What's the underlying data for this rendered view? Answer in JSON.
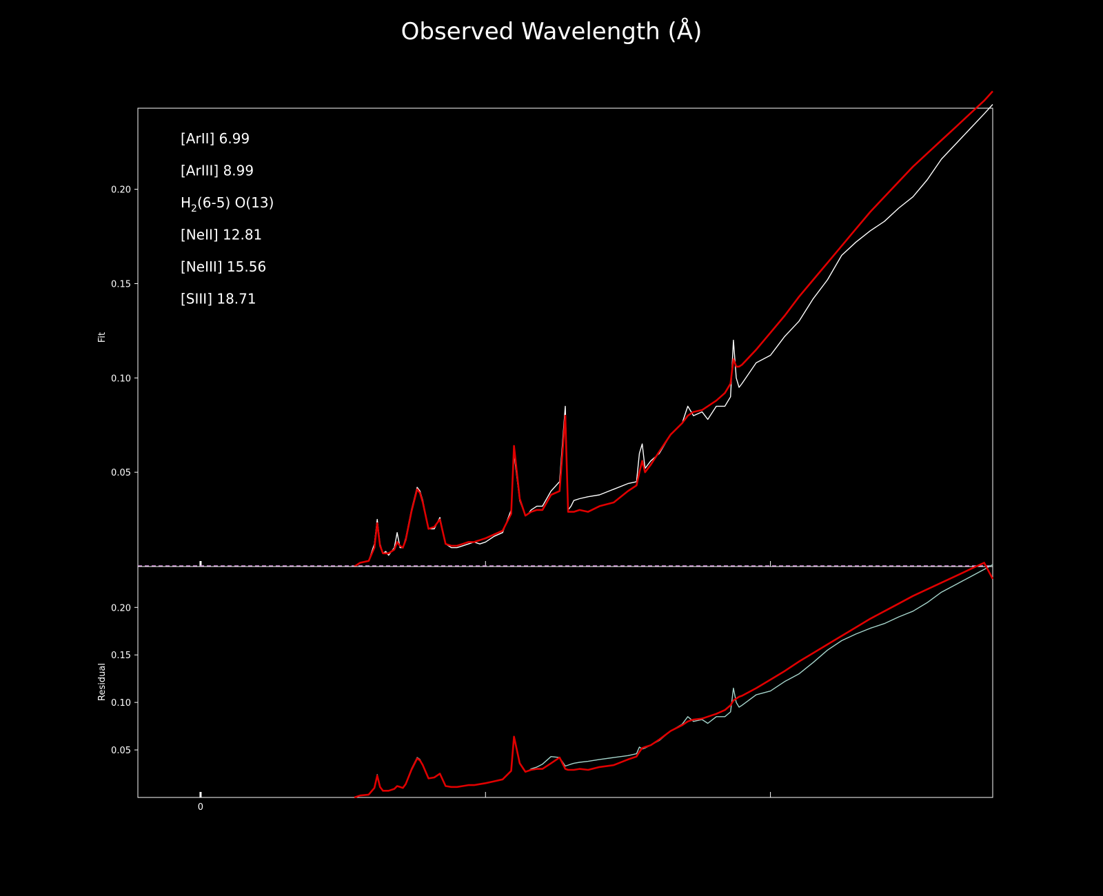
{
  "figure": {
    "title": "Observed Wavelength (Å)"
  },
  "colors": {
    "background": "#000000",
    "axes": "#ffffff",
    "data_top": "#ffffff",
    "data_bottom": "#a6d5cc",
    "model": "#e00000",
    "baseline": "#d08ad8"
  },
  "chart_data": [
    {
      "type": "line",
      "panel": "top",
      "ylabel": "Fit",
      "yticks": [
        0.05,
        0.1,
        0.15,
        0.2
      ],
      "yticklabels": [
        "0.05",
        "0.10",
        "0.15",
        "0.20"
      ],
      "ylim": [
        0.0,
        0.243
      ],
      "xlim": [
        -2.2,
        27.8
      ],
      "xticks": [
        0,
        10,
        20
      ],
      "xticklabels": [
        "",
        "",
        ""
      ],
      "line_labels": [
        {
          "ion": "[ArII]",
          "wavelength": "6.99"
        },
        {
          "ion": "[ArIII]",
          "wavelength": "8.99"
        },
        {
          "ion": "H",
          "sub": "2",
          "suffix": "(6-5) O(13)"
        },
        {
          "ion": "[NeII]",
          "wavelength": "12.81"
        },
        {
          "ion": "[NeIII]",
          "wavelength": "15.56"
        },
        {
          "ion": "[SIII]",
          "wavelength": "18.71"
        }
      ],
      "grid": false,
      "series": [
        {
          "role": "observed",
          "x": [
            5.4,
            5.6,
            5.9,
            6.1,
            6.2,
            6.3,
            6.4,
            6.5,
            6.6,
            6.8,
            6.9,
            7.0,
            7.1,
            7.2,
            7.4,
            7.6,
            7.7,
            7.8,
            8.0,
            8.2,
            8.4,
            8.6,
            8.8,
            9.0,
            9.2,
            9.4,
            9.6,
            9.8,
            10.0,
            10.3,
            10.6,
            10.9,
            11.0,
            11.2,
            11.4,
            11.5,
            11.6,
            11.8,
            12.0,
            12.3,
            12.6,
            12.8,
            12.9,
            13.0,
            13.1,
            13.3,
            13.6,
            14.0,
            14.5,
            15.0,
            15.3,
            15.4,
            15.5,
            15.6,
            15.8,
            16.1,
            16.5,
            16.9,
            17.1,
            17.3,
            17.6,
            17.8,
            18.1,
            18.4,
            18.6,
            18.7,
            18.8,
            18.9,
            19.0,
            19.5,
            20.0,
            20.5,
            21.0,
            21.5,
            22.0,
            22.5,
            23.0,
            23.5,
            24.0,
            24.5,
            25.0,
            25.5,
            26.0,
            26.5,
            27.0,
            27.5,
            27.8
          ],
          "y": [
            0.0,
            0.002,
            0.003,
            0.012,
            0.025,
            0.012,
            0.007,
            0.008,
            0.006,
            0.01,
            0.018,
            0.01,
            0.01,
            0.015,
            0.03,
            0.042,
            0.04,
            0.035,
            0.02,
            0.02,
            0.026,
            0.012,
            0.01,
            0.01,
            0.011,
            0.012,
            0.013,
            0.012,
            0.013,
            0.016,
            0.018,
            0.03,
            0.06,
            0.035,
            0.027,
            0.028,
            0.03,
            0.032,
            0.032,
            0.04,
            0.045,
            0.085,
            0.03,
            0.032,
            0.035,
            0.036,
            0.037,
            0.038,
            0.041,
            0.044,
            0.045,
            0.06,
            0.065,
            0.052,
            0.056,
            0.06,
            0.07,
            0.076,
            0.085,
            0.08,
            0.082,
            0.078,
            0.085,
            0.085,
            0.09,
            0.12,
            0.1,
            0.095,
            0.097,
            0.108,
            0.112,
            0.122,
            0.13,
            0.142,
            0.152,
            0.165,
            0.172,
            0.178,
            0.183,
            0.19,
            0.196,
            0.205,
            0.216,
            0.224,
            0.232,
            0.24,
            0.245
          ]
        },
        {
          "role": "model",
          "x": [
            5.4,
            5.6,
            5.9,
            6.1,
            6.2,
            6.3,
            6.4,
            6.5,
            6.6,
            6.8,
            6.9,
            7.0,
            7.1,
            7.2,
            7.4,
            7.6,
            7.7,
            7.8,
            8.0,
            8.2,
            8.4,
            8.6,
            8.8,
            9.0,
            9.2,
            9.4,
            9.6,
            9.8,
            10.0,
            10.3,
            10.6,
            10.9,
            11.0,
            11.2,
            11.4,
            11.5,
            11.6,
            11.8,
            12.0,
            12.3,
            12.6,
            12.8,
            12.9,
            13.0,
            13.1,
            13.3,
            13.6,
            14.0,
            14.5,
            15.0,
            15.3,
            15.4,
            15.5,
            15.6,
            15.8,
            16.1,
            16.5,
            16.9,
            17.1,
            17.3,
            17.6,
            17.8,
            18.1,
            18.4,
            18.6,
            18.7,
            18.8,
            18.9,
            19.0,
            19.5,
            20.0,
            20.5,
            21.0,
            21.5,
            22.0,
            22.5,
            23.0,
            23.5,
            24.0,
            24.5,
            25.0,
            25.5,
            26.0,
            26.5,
            27.0,
            27.5,
            27.8
          ],
          "y": [
            0.0,
            0.002,
            0.003,
            0.01,
            0.023,
            0.011,
            0.007,
            0.007,
            0.007,
            0.009,
            0.013,
            0.011,
            0.01,
            0.014,
            0.029,
            0.041,
            0.039,
            0.034,
            0.02,
            0.021,
            0.025,
            0.012,
            0.011,
            0.011,
            0.012,
            0.013,
            0.013,
            0.014,
            0.015,
            0.017,
            0.019,
            0.028,
            0.064,
            0.036,
            0.027,
            0.028,
            0.029,
            0.03,
            0.03,
            0.038,
            0.04,
            0.08,
            0.029,
            0.029,
            0.029,
            0.03,
            0.029,
            0.032,
            0.034,
            0.04,
            0.043,
            0.05,
            0.056,
            0.05,
            0.054,
            0.061,
            0.07,
            0.076,
            0.08,
            0.082,
            0.083,
            0.085,
            0.088,
            0.092,
            0.097,
            0.11,
            0.106,
            0.106,
            0.107,
            0.115,
            0.124,
            0.133,
            0.143,
            0.152,
            0.161,
            0.17,
            0.179,
            0.188,
            0.196,
            0.204,
            0.212,
            0.219,
            0.226,
            0.233,
            0.24,
            0.247,
            0.252
          ]
        }
      ]
    },
    {
      "type": "line",
      "panel": "bottom",
      "ylabel": "Residual",
      "yticks": [
        0.05,
        0.1,
        0.15,
        0.2
      ],
      "yticklabels": [
        "0.05",
        "0.10",
        "0.15",
        "0.20"
      ],
      "ylim": [
        0.0,
        0.243
      ],
      "xlim": [
        -2.2,
        27.8
      ],
      "xticks": [
        0,
        10,
        20
      ],
      "xticklabels": [
        "0",
        "",
        ""
      ],
      "grid": false,
      "series": [
        {
          "role": "observed",
          "x": [
            5.4,
            5.6,
            5.9,
            6.1,
            6.2,
            6.3,
            6.4,
            6.5,
            6.6,
            6.8,
            6.9,
            7.0,
            7.1,
            7.2,
            7.4,
            7.6,
            7.7,
            7.8,
            8.0,
            8.2,
            8.4,
            8.6,
            8.8,
            9.0,
            9.2,
            9.4,
            9.6,
            9.8,
            10.0,
            10.3,
            10.6,
            10.9,
            11.0,
            11.2,
            11.4,
            11.5,
            11.6,
            11.8,
            12.0,
            12.3,
            12.6,
            12.8,
            12.9,
            13.0,
            13.1,
            13.3,
            13.6,
            14.0,
            14.5,
            15.0,
            15.3,
            15.4,
            15.5,
            15.6,
            15.8,
            16.1,
            16.5,
            16.9,
            17.1,
            17.3,
            17.6,
            17.8,
            18.1,
            18.4,
            18.6,
            18.7,
            18.8,
            18.9,
            19.0,
            19.5,
            20.0,
            20.5,
            21.0,
            21.5,
            22.0,
            22.5,
            23.0,
            23.5,
            24.0,
            24.5,
            25.0,
            25.5,
            26.0,
            26.5,
            27.0,
            27.5,
            27.8
          ],
          "y": [
            0.0,
            0.002,
            0.003,
            0.01,
            0.024,
            0.011,
            0.007,
            0.007,
            0.007,
            0.009,
            0.012,
            0.011,
            0.01,
            0.014,
            0.03,
            0.042,
            0.04,
            0.034,
            0.02,
            0.021,
            0.025,
            0.012,
            0.011,
            0.011,
            0.012,
            0.013,
            0.013,
            0.014,
            0.015,
            0.017,
            0.019,
            0.028,
            0.062,
            0.036,
            0.027,
            0.028,
            0.03,
            0.032,
            0.035,
            0.043,
            0.042,
            0.033,
            0.034,
            0.035,
            0.036,
            0.037,
            0.038,
            0.04,
            0.042,
            0.044,
            0.046,
            0.053,
            0.051,
            0.052,
            0.055,
            0.06,
            0.07,
            0.077,
            0.085,
            0.08,
            0.082,
            0.078,
            0.085,
            0.085,
            0.09,
            0.115,
            0.1,
            0.095,
            0.097,
            0.108,
            0.112,
            0.122,
            0.13,
            0.142,
            0.155,
            0.165,
            0.172,
            0.178,
            0.183,
            0.19,
            0.196,
            0.205,
            0.216,
            0.224,
            0.232,
            0.24,
            0.245
          ]
        },
        {
          "role": "model",
          "x": [
            5.4,
            5.6,
            5.9,
            6.1,
            6.2,
            6.3,
            6.4,
            6.5,
            6.6,
            6.8,
            6.9,
            7.0,
            7.1,
            7.2,
            7.4,
            7.6,
            7.7,
            7.8,
            8.0,
            8.2,
            8.4,
            8.6,
            8.8,
            9.0,
            9.2,
            9.4,
            9.6,
            9.8,
            10.0,
            10.3,
            10.6,
            10.9,
            11.0,
            11.2,
            11.4,
            11.5,
            11.6,
            11.8,
            12.0,
            12.3,
            12.6,
            12.8,
            12.9,
            13.0,
            13.1,
            13.3,
            13.6,
            14.0,
            14.5,
            15.0,
            15.3,
            15.4,
            15.5,
            15.6,
            15.8,
            16.1,
            16.5,
            16.9,
            17.1,
            17.3,
            17.6,
            17.8,
            18.1,
            18.4,
            18.6,
            18.7,
            18.8,
            18.9,
            19.0,
            19.5,
            20.0,
            20.5,
            21.0,
            21.5,
            22.0,
            22.5,
            23.0,
            23.5,
            24.0,
            24.5,
            25.0,
            25.5,
            26.0,
            26.5,
            27.0,
            27.5,
            27.8
          ],
          "y": [
            0.0,
            0.002,
            0.003,
            0.01,
            0.023,
            0.011,
            0.007,
            0.007,
            0.007,
            0.009,
            0.012,
            0.011,
            0.01,
            0.014,
            0.029,
            0.041,
            0.039,
            0.034,
            0.02,
            0.021,
            0.025,
            0.012,
            0.011,
            0.011,
            0.012,
            0.013,
            0.013,
            0.014,
            0.015,
            0.017,
            0.019,
            0.028,
            0.064,
            0.036,
            0.027,
            0.028,
            0.029,
            0.03,
            0.03,
            0.036,
            0.042,
            0.03,
            0.029,
            0.029,
            0.029,
            0.03,
            0.029,
            0.032,
            0.034,
            0.04,
            0.043,
            0.048,
            0.052,
            0.053,
            0.055,
            0.061,
            0.07,
            0.076,
            0.08,
            0.082,
            0.083,
            0.085,
            0.088,
            0.092,
            0.097,
            0.102,
            0.104,
            0.106,
            0.107,
            0.115,
            0.124,
            0.133,
            0.143,
            0.152,
            0.161,
            0.17,
            0.179,
            0.188,
            0.196,
            0.204,
            0.212,
            0.219,
            0.226,
            0.233,
            0.24,
            0.247,
            0.23
          ]
        }
      ]
    }
  ]
}
